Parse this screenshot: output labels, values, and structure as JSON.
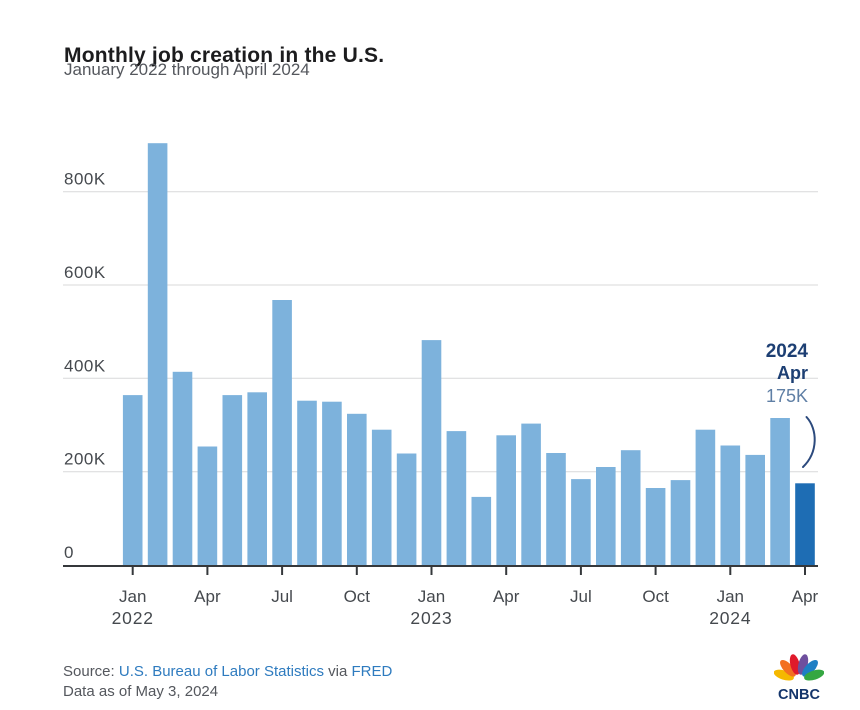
{
  "title": "Monthly job creation in the U.S.",
  "subtitle": "January 2022 through April 2024",
  "source": {
    "prefix": "Source: ",
    "link_bls": "U.S. Bureau of Labor Statistics",
    "middle": " via ",
    "link_fred": "FRED",
    "data_as_of": "Data as of May 3, 2024"
  },
  "logo": {
    "text": "CNBC",
    "icon": "cnbc-peacock-icon"
  },
  "colors": {
    "bar": "#7db2dc",
    "highlight_bar": "#1e6db4",
    "annotation_navy": "#1d3f73",
    "annotation_value": "#5f7fa5",
    "bracket": "#2c4a7d",
    "title_text": "#1c1c1e",
    "gray_text": "#54575d",
    "link": "#2e7bbf",
    "axis_label": "#45494e",
    "gridline": "#d8d9da",
    "axis_line": "#35383b",
    "logo_text": "#14356b",
    "peacock_feathers": [
      "#f5b800",
      "#f37021",
      "#e01a2b",
      "#6e4f9e",
      "#1d7fc4",
      "#35a742"
    ]
  },
  "chart_data": {
    "type": "bar",
    "title": "Monthly job creation in the U.S.",
    "subtitle": "January 2022 through April 2024",
    "unit": "thousands of jobs (K)",
    "grid": "horizontal",
    "legend": false,
    "ylim": [
      0,
      950
    ],
    "categories": [
      "Jan 2022",
      "Feb 2022",
      "Mar 2022",
      "Apr 2022",
      "May 2022",
      "Jun 2022",
      "Jul 2022",
      "Aug 2022",
      "Sep 2022",
      "Oct 2022",
      "Nov 2022",
      "Dec 2022",
      "Jan 2023",
      "Feb 2023",
      "Mar 2023",
      "Apr 2023",
      "May 2023",
      "Jun 2023",
      "Jul 2023",
      "Aug 2023",
      "Sep 2023",
      "Oct 2023",
      "Nov 2023",
      "Dec 2023",
      "Jan 2024",
      "Feb 2024",
      "Mar 2024",
      "Apr 2024"
    ],
    "values": [
      364,
      904,
      414,
      254,
      364,
      370,
      568,
      352,
      350,
      324,
      290,
      239,
      482,
      287,
      146,
      278,
      303,
      240,
      184,
      210,
      246,
      165,
      182,
      290,
      256,
      236,
      315,
      175
    ],
    "highlight_index": 27,
    "yticks": [
      {
        "value": 0,
        "label": "0"
      },
      {
        "value": 200,
        "label": "200K"
      },
      {
        "value": 400,
        "label": "400K"
      },
      {
        "value": 600,
        "label": "600K"
      },
      {
        "value": 800,
        "label": "800K"
      }
    ],
    "xticks": [
      {
        "index": 0,
        "label": "Jan",
        "year": "2022"
      },
      {
        "index": 3,
        "label": "Apr"
      },
      {
        "index": 6,
        "label": "Jul"
      },
      {
        "index": 9,
        "label": "Oct"
      },
      {
        "index": 12,
        "label": "Jan",
        "year": "2023"
      },
      {
        "index": 15,
        "label": "Apr"
      },
      {
        "index": 18,
        "label": "Jul"
      },
      {
        "index": 21,
        "label": "Oct"
      },
      {
        "index": 24,
        "label": "Jan",
        "year": "2024"
      },
      {
        "index": 27,
        "label": "Apr"
      }
    ],
    "annotation": {
      "year": "2024",
      "month": "Apr",
      "value": "175K"
    }
  }
}
